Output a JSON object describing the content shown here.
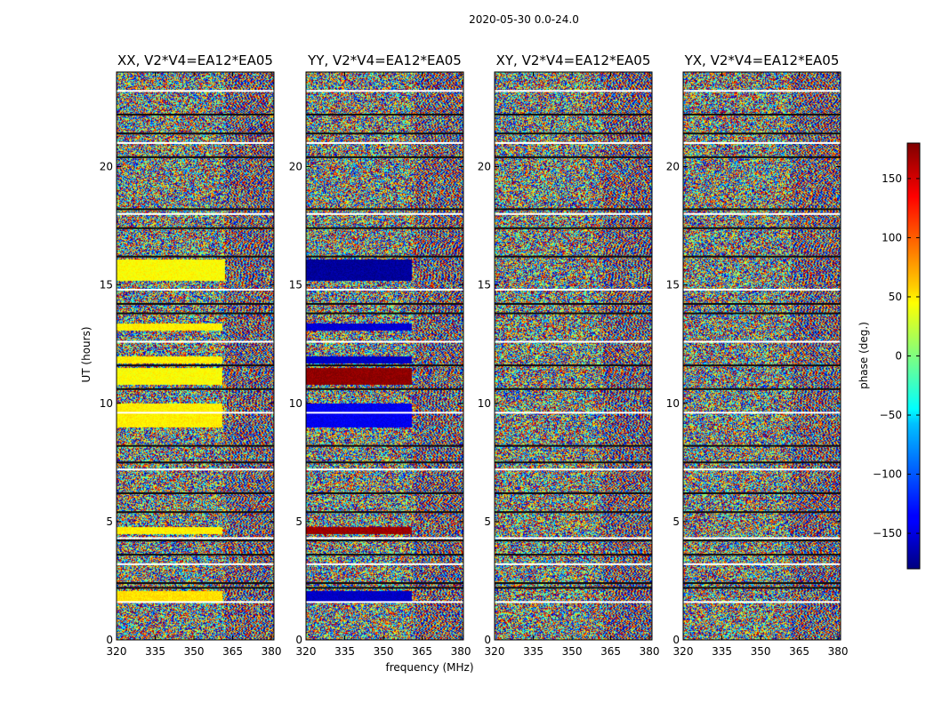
{
  "figure": {
    "suptitle": "2020-05-30 0.0-24.0"
  },
  "chart_data": {
    "type": "heatmap",
    "title": "2020-05-30 0.0-24.0",
    "xlabel": "frequency (MHz)",
    "ylabel": "UT (hours)",
    "xlim": [
      320,
      381
    ],
    "ylim": [
      0,
      24
    ],
    "x_ticks": [
      320,
      335,
      350,
      365,
      380
    ],
    "x_tick_labels": [
      "320",
      "335",
      "350",
      "365",
      "380"
    ],
    "y_ticks": [
      0,
      5,
      10,
      15,
      20
    ],
    "y_tick_labels": [
      "0",
      "5",
      "10",
      "15",
      "20"
    ],
    "colorbar": {
      "label": "phase (deg.)",
      "range": [
        -180,
        180
      ],
      "ticks": [
        150,
        100,
        50,
        0,
        -50,
        -100,
        -150
      ],
      "tick_labels": [
        "150",
        "100",
        "50",
        "0",
        "−50",
        "−100",
        "−150"
      ],
      "colormap": "jet"
    },
    "panels": [
      {
        "title": "XX, V2*V4=EA12*EA05",
        "coherent_bands": [
          {
            "t_start": 15.2,
            "t_end": 16.1,
            "f_end": 362,
            "phase_deg": 45
          },
          {
            "t_start": 13.1,
            "t_end": 13.4,
            "f_end": 361,
            "phase_deg": 50
          },
          {
            "t_start": 11.7,
            "t_end": 12.0,
            "f_end": 361,
            "phase_deg": 50
          },
          {
            "t_start": 10.8,
            "t_end": 11.5,
            "f_end": 361,
            "phase_deg": 45
          },
          {
            "t_start": 9.0,
            "t_end": 10.0,
            "f_end": 361,
            "phase_deg": 50
          },
          {
            "t_start": 4.5,
            "t_end": 4.8,
            "f_end": 361,
            "phase_deg": 50
          },
          {
            "t_start": 1.6,
            "t_end": 2.1,
            "f_end": 361,
            "phase_deg": 55
          }
        ]
      },
      {
        "title": "YY, V2*V4=EA12*EA05",
        "coherent_bands": [
          {
            "t_start": 15.2,
            "t_end": 16.1,
            "f_end": 361,
            "phase_deg": -170
          },
          {
            "t_start": 13.1,
            "t_end": 13.4,
            "f_end": 361,
            "phase_deg": -150
          },
          {
            "t_start": 11.7,
            "t_end": 12.0,
            "f_end": 361,
            "phase_deg": -155
          },
          {
            "t_start": 10.8,
            "t_end": 11.5,
            "f_end": 361,
            "phase_deg": 175
          },
          {
            "t_start": 9.0,
            "t_end": 10.0,
            "f_end": 361,
            "phase_deg": -140
          },
          {
            "t_start": 4.5,
            "t_end": 4.8,
            "f_end": 361,
            "phase_deg": 170
          },
          {
            "t_start": 1.6,
            "t_end": 2.1,
            "f_end": 361,
            "phase_deg": -155
          }
        ]
      },
      {
        "title": "XY, V2*V4=EA12*EA05",
        "coherent_bands": []
      },
      {
        "title": "YX, V2*V4=EA12*EA05",
        "coherent_bands": []
      }
    ],
    "flagged_rows_ut": [
      23.2,
      22.2,
      21.4,
      21.0,
      20.4,
      18.2,
      18.0,
      17.4,
      16.2,
      14.8,
      14.2,
      13.8,
      12.6,
      11.6,
      10.6,
      9.6,
      8.2,
      7.5,
      7.2,
      6.2,
      5.4,
      4.3,
      4.2,
      3.6,
      3.2,
      2.4,
      2.2,
      1.6
    ]
  }
}
